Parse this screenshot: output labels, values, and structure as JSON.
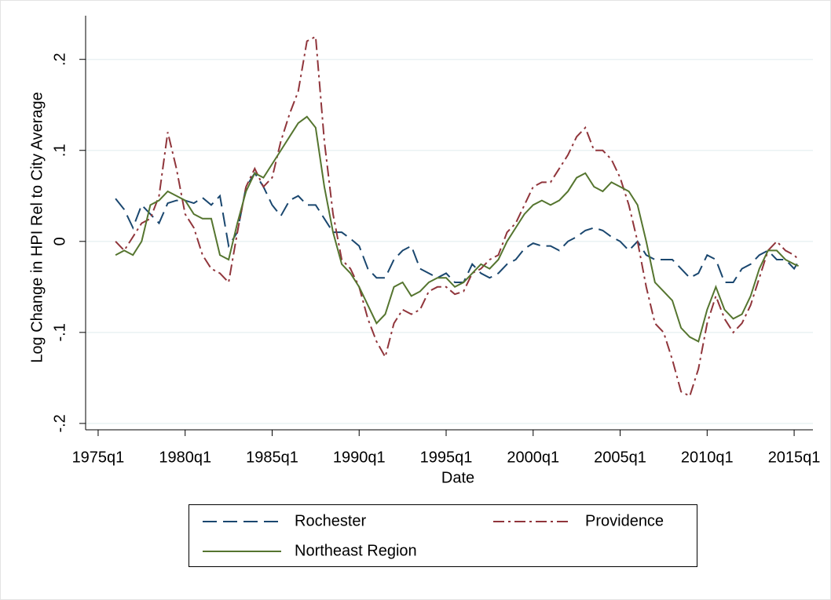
{
  "chart_data": {
    "type": "line",
    "y_label": "Log Change in HPI Rel to City Average",
    "x_label": "Date",
    "x": [
      1976,
      1976.5,
      1977,
      1977.5,
      1978,
      1978.5,
      1979,
      1979.5,
      1980,
      1980.5,
      1981,
      1981.5,
      1982,
      1982.5,
      1983,
      1983.5,
      1984,
      1984.5,
      1985,
      1985.5,
      1986,
      1986.5,
      1987,
      1987.5,
      1988,
      1988.5,
      1989,
      1989.5,
      1990,
      1990.5,
      1991,
      1991.5,
      1992,
      1992.5,
      1993,
      1993.5,
      1994,
      1994.5,
      1995,
      1995.5,
      1996,
      1996.5,
      1997,
      1997.5,
      1998,
      1998.5,
      1999,
      1999.5,
      2000,
      2000.5,
      2001,
      2001.5,
      2002,
      2002.5,
      2003,
      2003.5,
      2004,
      2004.5,
      2005,
      2005.5,
      2006,
      2006.5,
      2007,
      2007.5,
      2008,
      2008.5,
      2009,
      2009.5,
      2010,
      2010.5,
      2011,
      2011.5,
      2012,
      2012.5,
      2013,
      2013.5,
      2014,
      2014.5,
      2015,
      2015.25
    ],
    "series": [
      {
        "name": "Rochester",
        "color": "#1a476f",
        "style": "dash",
        "values": [
          0.047,
          0.035,
          0.015,
          0.04,
          0.03,
          0.02,
          0.042,
          0.045,
          0.045,
          0.042,
          0.048,
          0.04,
          0.05,
          -0.005,
          0.01,
          0.06,
          0.075,
          0.06,
          0.04,
          0.028,
          0.045,
          0.05,
          0.04,
          0.04,
          0.025,
          0.01,
          0.01,
          0.003,
          -0.005,
          -0.03,
          -0.04,
          -0.04,
          -0.02,
          -0.01,
          -0.005,
          -0.03,
          -0.035,
          -0.04,
          -0.035,
          -0.045,
          -0.045,
          -0.025,
          -0.035,
          -0.04,
          -0.035,
          -0.025,
          -0.02,
          -0.008,
          -0.002,
          -0.005,
          -0.005,
          -0.01,
          0,
          0.005,
          0.012,
          0.015,
          0.012,
          0.005,
          0,
          -0.01,
          0,
          -0.015,
          -0.02,
          -0.02,
          -0.02,
          -0.03,
          -0.04,
          -0.035,
          -0.015,
          -0.02,
          -0.045,
          -0.045,
          -0.03,
          -0.025,
          -0.015,
          -0.01,
          -0.02,
          -0.02,
          -0.03,
          -0.022
        ]
      },
      {
        "name": "Providence",
        "color": "#90353b",
        "style": "dashdot",
        "values": [
          0,
          -0.01,
          0.005,
          0.02,
          0.025,
          0.05,
          0.12,
          0.08,
          0.03,
          0.015,
          -0.015,
          -0.03,
          -0.035,
          -0.045,
          0.01,
          0.06,
          0.08,
          0.06,
          0.07,
          0.11,
          0.14,
          0.165,
          0.22,
          0.225,
          0.11,
          0.03,
          -0.02,
          -0.03,
          -0.05,
          -0.085,
          -0.11,
          -0.127,
          -0.09,
          -0.075,
          -0.08,
          -0.075,
          -0.055,
          -0.05,
          -0.05,
          -0.058,
          -0.055,
          -0.035,
          -0.03,
          -0.02,
          -0.015,
          0.01,
          0.02,
          0.04,
          0.06,
          0.065,
          0.065,
          0.08,
          0.095,
          0.115,
          0.125,
          0.1,
          0.1,
          0.09,
          0.07,
          0.04,
          0,
          -0.05,
          -0.09,
          -0.1,
          -0.13,
          -0.165,
          -0.17,
          -0.14,
          -0.09,
          -0.06,
          -0.085,
          -0.1,
          -0.09,
          -0.07,
          -0.04,
          -0.01,
          0,
          -0.01,
          -0.015,
          -0.02
        ]
      },
      {
        "name": "Northeast Region",
        "color": "#55752f",
        "style": "solid",
        "values": [
          -0.015,
          -0.01,
          -0.015,
          0,
          0.04,
          0.045,
          0.055,
          0.05,
          0.045,
          0.03,
          0.025,
          0.025,
          -0.015,
          -0.02,
          0.02,
          0.055,
          0.075,
          0.07,
          0.085,
          0.1,
          0.115,
          0.13,
          0.137,
          0.125,
          0.06,
          0.01,
          -0.025,
          -0.035,
          -0.05,
          -0.07,
          -0.09,
          -0.08,
          -0.05,
          -0.045,
          -0.06,
          -0.055,
          -0.045,
          -0.04,
          -0.04,
          -0.05,
          -0.045,
          -0.035,
          -0.025,
          -0.03,
          -0.02,
          0,
          0.015,
          0.03,
          0.04,
          0.045,
          0.04,
          0.045,
          0.055,
          0.07,
          0.075,
          0.06,
          0.055,
          0.065,
          0.06,
          0.055,
          0.04,
          0,
          -0.045,
          -0.055,
          -0.065,
          -0.095,
          -0.105,
          -0.11,
          -0.075,
          -0.05,
          -0.075,
          -0.085,
          -0.08,
          -0.06,
          -0.03,
          -0.01,
          -0.01,
          -0.02,
          -0.025,
          -0.027
        ]
      }
    ],
    "xlim": [
      1974.28,
      2016.08
    ],
    "xticks": [
      {
        "value": 1975,
        "label": "1975q1"
      },
      {
        "value": 1980,
        "label": "1980q1"
      },
      {
        "value": 1985,
        "label": "1985q1"
      },
      {
        "value": 1990,
        "label": "1990q1"
      },
      {
        "value": 1995,
        "label": "1995q1"
      },
      {
        "value": 2000,
        "label": "2000q1"
      },
      {
        "value": 2005,
        "label": "2005q1"
      },
      {
        "value": 2010,
        "label": "2010q1"
      },
      {
        "value": 2015,
        "label": "2015q1"
      }
    ],
    "ylim": [
      -0.207,
      0.248
    ],
    "yticks": [
      {
        "value": -0.2,
        "label": "-.2"
      },
      {
        "value": -0.1,
        "label": "-.1"
      },
      0,
      {
        "value": 0.1,
        "label": ".1"
      },
      {
        "value": 0.2,
        "label": ".2"
      }
    ],
    "grid": true
  }
}
